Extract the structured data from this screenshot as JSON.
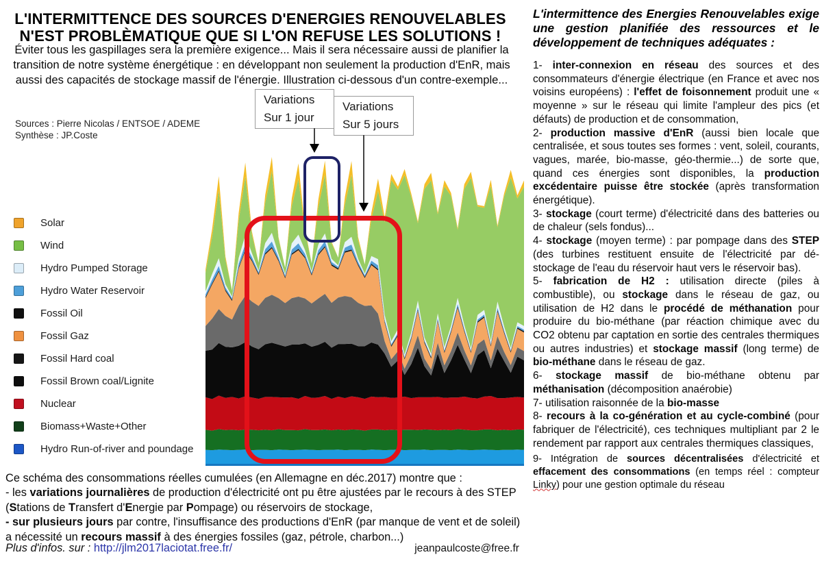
{
  "left": {
    "title_line1": "L'INTERMITTENCE DES SOURCES D'ENERGIES RENOUVELABLES",
    "title_line2": "N'EST PROBLÈMATIQUE QUE SI L'ON REFUSE LES SOLUTIONS !",
    "subtitle": "Éviter tous les gaspillages sera la première exigence... Mais il sera nécessaire aussi de planifier la transition de notre système énergétique : en développant non seulement la production d'EnR, mais aussi des capacités de stockage massif de l'énergie. Illustration ci-dessous d'un contre-exemple...",
    "sources_line1": "Sources : Pierre Nicolas / ENTSOE / ADEME",
    "sources_line2": "Synthèse : JP.Coste",
    "callout1": {
      "line1": "Variations",
      "line2": "Sur 1 jour"
    },
    "callout2": {
      "line1": "Variations",
      "line2": "Sur 5 jours"
    },
    "caption_runs": [
      {
        "t": "Ce schéma des consommations réelles cumulées (en Allemagne en déc.2017) montre que :"
      },
      {
        "br": true
      },
      {
        "t": "- les "
      },
      {
        "t": "variations journalières",
        "b": true
      },
      {
        "t": " de production d'électricité ont pu être ajustées par le recours à des STEP ("
      },
      {
        "t": "S",
        "b": true
      },
      {
        "t": "tations de "
      },
      {
        "t": "T",
        "b": true
      },
      {
        "t": "ransfert d'"
      },
      {
        "t": "E",
        "b": true
      },
      {
        "t": "nergie par "
      },
      {
        "t": "P",
        "b": true
      },
      {
        "t": "ompage) ou réservoirs de stockage,"
      },
      {
        "br": true
      },
      {
        "t": "- sur plusieurs jours",
        "b": true
      },
      {
        "t": " par contre, l'insuffisance des productions d'EnR (par manque de vent et de soleil) a nécessité un "
      },
      {
        "t": "recours massif",
        "b": true
      },
      {
        "t": " à des énergies fossiles (gaz, pétrole, charbon...)"
      }
    ],
    "footer": {
      "runs": [
        {
          "t": "Plus d'infos. sur :  ",
          "i": true
        },
        {
          "t": "http://jlm2017laciotat.free.fr/",
          "link": true
        }
      ],
      "email": "jeanpaulcoste@free.fr"
    }
  },
  "right": {
    "heading": "L'intermittence des Energies Renouvelables exige une gestion planifiée des ressources et le développement de techniques adéquates :",
    "items": [
      [
        {
          "t": "1- "
        },
        {
          "t": "inter-connexion en réseau",
          "b": true
        },
        {
          "t": " des sources et des consommateurs d'énergie électrique (en France et avec nos voisins européens) : "
        },
        {
          "t": "l'effet de foisonnement",
          "b": true
        },
        {
          "t": " produit une « moyenne » sur le réseau qui limite l'ampleur des pics (et défauts) de production et de consommation,"
        }
      ],
      [
        {
          "t": "2- "
        },
        {
          "t": "production massive d'EnR",
          "b": true
        },
        {
          "t": " (aussi bien locale que centralisée, et sous toutes ses formes : vent, soleil, courants, vagues, marée, bio-masse, géo-thermie...) de sorte que, quand ces énergies sont disponibles, la "
        },
        {
          "t": "production excédentaire puisse être stockée",
          "b": true
        },
        {
          "t": " (après transformation énergétique)."
        }
      ],
      [
        {
          "t": "3- "
        },
        {
          "t": "stockage",
          "b": true
        },
        {
          "t": " (court terme) d'électricité dans des batteries ou de chaleur (sels fondus)..."
        }
      ],
      [
        {
          "t": "4- "
        },
        {
          "t": "stockage",
          "b": true
        },
        {
          "t": " (moyen terme) : par pompage dans des "
        },
        {
          "t": "STEP",
          "b": true
        },
        {
          "t": " (des turbines restituent ensuite de l'électricité par dé-stockage de l'eau du réservoir haut vers le réservoir bas)."
        }
      ],
      [
        {
          "t": "5- "
        },
        {
          "t": "fabrication de H2 :",
          "b": true
        },
        {
          "t": " utilisation directe (piles à combustible), ou "
        },
        {
          "t": "stockage",
          "b": true
        },
        {
          "t": " dans le réseau de gaz, ou utilisation de H2 dans le "
        },
        {
          "t": "procédé de méthanation",
          "b": true
        },
        {
          "t": " pour produire du bio-méthane (par réaction chimique avec du CO2 obtenu par captation en sortie des centrales thermiques ou autres industries) et "
        },
        {
          "t": "stockage massif",
          "b": true
        },
        {
          "t": " (long terme) de "
        },
        {
          "t": "bio-méthane",
          "b": true
        },
        {
          "t": " dans le réseau de gaz."
        }
      ],
      [
        {
          "t": "6- "
        },
        {
          "t": "stockage massif",
          "b": true
        },
        {
          "t": " de bio-méthane obtenu par "
        },
        {
          "t": "méthanisation",
          "b": true
        },
        {
          "t": " (décomposition anaérobie)"
        }
      ],
      [
        {
          "t": "7- utilisation raisonnée de la "
        },
        {
          "t": "bio-masse",
          "b": true
        }
      ],
      [
        {
          "t": "8- "
        },
        {
          "t": "recours à la co-génération et au cycle-combiné",
          "b": true
        },
        {
          "t": " (pour fabriquer de l'électricité), ces techniques multipliant par 2 le rendement par rapport aux centrales thermiques classiques,"
        }
      ],
      [
        {
          "t": "9- Intégration de "
        },
        {
          "t": "sources décentralisées",
          "b": true
        },
        {
          "t": " d'électricité et "
        },
        {
          "t": "effacement des consommations",
          "b": true
        },
        {
          "t": " (en temps réel : compteur "
        },
        {
          "t": "Linky",
          "sq": true
        },
        {
          "t": ") pour une gestion optimale du réseau"
        }
      ]
    ]
  },
  "chart_data": {
    "type": "area",
    "stacked": true,
    "title": "",
    "xlabel": "",
    "ylabel": "",
    "unit": "% of plot height (estimated, no axes shown in source)",
    "legend_position": "left",
    "legend": [
      {
        "label": "Solar",
        "color": "#EFA32C"
      },
      {
        "label": "Wind",
        "color": "#76BE45"
      },
      {
        "label": "Hydro Pumped Storage",
        "color": "#DCEDF8"
      },
      {
        "label": "Hydro Water Reservoir",
        "color": "#4D9FD9"
      },
      {
        "label": "Fossil Oil",
        "color": "#101010"
      },
      {
        "label": "Fossil Gaz",
        "color": "#EF9140"
      },
      {
        "label": "Fossil Hard coal",
        "color": "#161616"
      },
      {
        "label": "Fossil Brown coal/Lignite",
        "color": "#0E0E0E"
      },
      {
        "label": "Nuclear",
        "color": "#C01020"
      },
      {
        "label": "Biomass+Waste+Other",
        "color": "#123F1A"
      },
      {
        "label": "Hydro Run-of-river and poundage",
        "color": "#1C57C6"
      }
    ],
    "series": [
      {
        "key": "hydro-run-of-river",
        "name": "Hydro Run-of-river and poundage",
        "color": "#1E9BE0",
        "values": [
          4.5,
          4.4,
          4.6,
          4.5,
          4.4,
          4.5,
          4.6,
          4.4,
          4.5,
          4.5,
          4.4,
          4.6,
          4.5,
          4.4,
          4.5,
          4.6,
          4.5,
          4.4,
          4.5,
          4.5,
          4.6,
          4.4,
          4.5,
          4.5,
          4.4,
          4.6,
          4.5,
          4.4,
          4.5,
          4.6,
          4.4,
          4.5,
          4.5,
          4.6,
          4.4,
          4.5,
          4.5,
          4.4,
          4.6,
          4.5,
          4.4,
          4.5,
          4.6,
          4.5,
          4.4,
          4.5,
          4.5,
          4.6,
          4.5
        ]
      },
      {
        "key": "biomass",
        "name": "Biomass+Waste+Other",
        "color": "#156F22",
        "values": [
          6.5,
          6.3,
          6.6,
          6.4,
          6.6,
          6.3,
          6.5,
          6.6,
          6.3,
          6.5,
          6.4,
          6.6,
          6.4,
          6.5,
          6.3,
          6.6,
          6.4,
          6.5,
          6.6,
          6.3,
          6.5,
          6.4,
          6.6,
          6.5,
          6.3,
          6.5,
          6.6,
          6.4,
          6.5,
          6.3,
          6.6,
          6.5,
          6.4,
          6.5,
          6.6,
          6.3,
          6.5,
          6.4,
          6.6,
          6.5,
          6.4,
          6.3,
          6.5,
          6.6,
          6.4,
          6.5,
          6.3,
          6.5,
          6.5
        ]
      },
      {
        "key": "nuclear",
        "name": "Nuclear",
        "color": "#C30B15",
        "values": [
          10.5,
          10.2,
          10.8,
          10.4,
          10.6,
          10.3,
          10.7,
          10.4,
          10.2,
          10.6,
          10.8,
          10.3,
          10.5,
          10.6,
          10.2,
          10.7,
          10.4,
          10.5,
          10.8,
          10.2,
          10.6,
          10.4,
          10.7,
          10.5,
          10.3,
          10.6,
          10.4,
          10.8,
          10.3,
          10.5,
          10.7,
          10.2,
          10.6,
          10.4,
          10.5,
          10.8,
          10.3,
          10.6,
          10.2,
          10.7,
          10.5,
          10.3,
          10.6,
          10.8,
          10.4,
          10.2,
          10.6,
          10.5,
          10.4
        ]
      },
      {
        "key": "brown-coal",
        "name": "Fossil Brown coal/Lignite",
        "color": "#0B0B0B",
        "values": [
          15,
          16,
          17,
          16.5,
          16,
          17,
          17.5,
          16.5,
          16,
          17,
          17.5,
          17,
          16.5,
          17,
          17.5,
          17,
          16.5,
          17,
          17.5,
          16.5,
          17,
          17.5,
          17,
          16.5,
          17,
          17.5,
          17,
          14,
          10,
          12,
          7,
          11,
          16,
          10,
          7,
          14,
          8,
          12,
          17,
          12,
          8,
          14,
          15,
          9,
          16,
          12,
          8,
          13,
          12
        ]
      },
      {
        "key": "hard-coal",
        "name": "Fossil Hard coal",
        "color": "#6A6A6A",
        "values": [
          8,
          10,
          11,
          10,
          9,
          13,
          15,
          14.5,
          14,
          15,
          15.5,
          15,
          14,
          15,
          15.5,
          14.5,
          14,
          15,
          15.5,
          14.5,
          15,
          15.5,
          15,
          14,
          13,
          12,
          10,
          4,
          2.5,
          3,
          2,
          3,
          4,
          2.5,
          2,
          3.5,
          2.5,
          3,
          4,
          3,
          2.5,
          3.5,
          3.5,
          2.5,
          4,
          3,
          2.5,
          3,
          3
        ]
      },
      {
        "key": "fossil-gaz",
        "name": "Fossil Gaz",
        "color": "#F4A763",
        "values": [
          9,
          11,
          12,
          8,
          6,
          12,
          14.5,
          13,
          10,
          14,
          15,
          12,
          8,
          14,
          15,
          13,
          9,
          14,
          15,
          12,
          9,
          14,
          15,
          12,
          9,
          13,
          14,
          6,
          4,
          5,
          3,
          5,
          8,
          5,
          3.5,
          7,
          4,
          6,
          8,
          6,
          4,
          7,
          7,
          4.5,
          8,
          6,
          4,
          6,
          6
        ]
      },
      {
        "key": "fossil-oil",
        "name": "Fossil Oil",
        "color": "#141414",
        "values": [
          0.4,
          0.4,
          0.4,
          0.4,
          0.4,
          0.4,
          0.4,
          0.4,
          0.4,
          0.4,
          0.4,
          0.4,
          0.4,
          0.4,
          0.4,
          0.4,
          0.4,
          0.4,
          0.4,
          0.4,
          0.4,
          0.4,
          0.4,
          0.4,
          0.4,
          0.4,
          0.4,
          0.4,
          0.4,
          0.4,
          0.4,
          0.4,
          0.4,
          0.4,
          0.4,
          0.4,
          0.4,
          0.4,
          0.4,
          0.4,
          0.4,
          0.4,
          0.4,
          0.4,
          0.4,
          0.4,
          0.4,
          0.4,
          0.4
        ]
      },
      {
        "key": "hydro-reservoir",
        "name": "Hydro Water Reservoir",
        "color": "#55A0D9",
        "values": [
          0.8,
          1.2,
          1.5,
          0.8,
          0.5,
          1.2,
          1.8,
          1,
          0.5,
          1.3,
          1.8,
          0.8,
          0.5,
          1.3,
          1.8,
          1,
          0.5,
          1.2,
          1.6,
          0.8,
          0.5,
          1.2,
          1.6,
          0.8,
          0.5,
          1,
          1.2,
          0.6,
          0.4,
          0.5,
          0.3,
          0.5,
          0.8,
          0.4,
          0.3,
          0.6,
          0.4,
          0.5,
          0.8,
          0.5,
          0.3,
          0.6,
          0.6,
          0.4,
          0.8,
          0.5,
          0.3,
          0.5,
          0.5
        ]
      },
      {
        "key": "hydro-pumped",
        "name": "Hydro Pumped Storage",
        "color": "#E6F2FB",
        "values": [
          1,
          1.8,
          2.5,
          1,
          0.5,
          1.8,
          2.8,
          1.2,
          0.5,
          2,
          2.8,
          1,
          0.5,
          2,
          2.8,
          1.2,
          0.5,
          1.8,
          2.5,
          1,
          0.5,
          1.8,
          2.5,
          1,
          0.5,
          1.5,
          2,
          1.5,
          1,
          1.2,
          0.8,
          1.2,
          2,
          1,
          0.8,
          1.5,
          1,
          1.2,
          2,
          1.2,
          0.8,
          1.5,
          1.5,
          1,
          2,
          1.2,
          0.8,
          1.2,
          1.2
        ]
      },
      {
        "key": "wind",
        "name": "Wind",
        "color": "#97CC64",
        "values": [
          6,
          12,
          22,
          8,
          2,
          12,
          19,
          6,
          2.5,
          13,
          20,
          5,
          2,
          12,
          18,
          6,
          2.5,
          12,
          19,
          5,
          2.5,
          12,
          20,
          6,
          3,
          12,
          22,
          30,
          52,
          45,
          58,
          44,
          25,
          48,
          56,
          32,
          52,
          42,
          22,
          44,
          55,
          35,
          33,
          50,
          24,
          42,
          55,
          40,
          45
        ]
      },
      {
        "key": "solar",
        "name": "Solar",
        "color": "#F4BE28",
        "values": [
          1,
          2.5,
          4.5,
          1,
          0,
          2.5,
          4.5,
          1,
          0,
          2.5,
          4.5,
          0.5,
          0,
          2.5,
          5,
          1,
          0,
          2.5,
          4.5,
          0.5,
          0,
          2.5,
          4.5,
          1,
          0,
          2,
          4,
          1.5,
          2,
          1,
          2,
          1,
          0.5,
          1.5,
          2.5,
          0.5,
          2,
          1,
          0.5,
          1.5,
          2,
          0.5,
          0.5,
          2,
          0.5,
          1,
          2.5,
          1,
          2
        ]
      }
    ]
  }
}
